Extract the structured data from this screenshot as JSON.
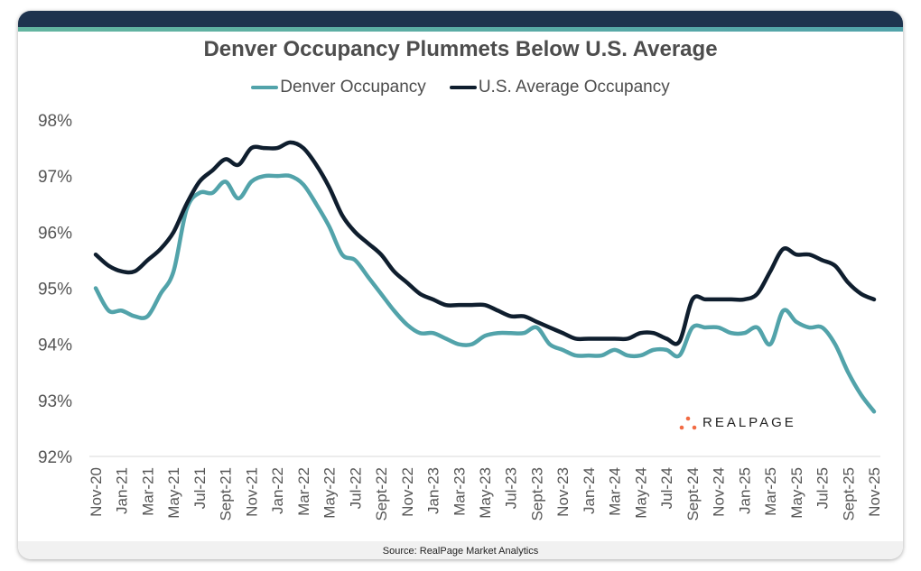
{
  "colors": {
    "denver": "#52a3aa",
    "us": "#0f1e2e",
    "header": "#1e334e",
    "accent": "#63b5a0",
    "logo_dots": "#f26b43"
  },
  "footer": {
    "source": "Source: RealPage Market Analytics"
  },
  "logo": {
    "text": "REALPAGE"
  },
  "chart_data": {
    "type": "line",
    "title": "Denver Occupancy Plummets Below U.S. Average",
    "xlabel": "",
    "ylabel": "",
    "ylim": [
      92,
      98
    ],
    "yticks": [
      "92%",
      "93%",
      "94%",
      "95%",
      "96%",
      "97%",
      "98%"
    ],
    "grid": false,
    "legend": "top",
    "xticklabels": [
      "Nov-20",
      "Jan-21",
      "Mar-21",
      "May-21",
      "Jul-21",
      "Sept-21",
      "Nov-21",
      "Jan-22",
      "Mar-22",
      "May-22",
      "Jul-22",
      "Sept-22",
      "Nov-22",
      "Jan-23",
      "Mar-23",
      "May-23",
      "Jul-23",
      "Sept-23",
      "Nov-23",
      "Jan-24",
      "Mar-24",
      "May-24",
      "Jul-24",
      "Sept-24",
      "Nov-24",
      "Jan-25",
      "Mar-25",
      "May-25",
      "Jul-25",
      "Sept-25",
      "Nov-25"
    ],
    "x_start": "Nov-20",
    "x_end": "Nov-25",
    "x_frequency": "monthly",
    "series": [
      {
        "name": "Denver Occupancy",
        "color": "#52a3aa",
        "values": [
          95.0,
          94.6,
          94.6,
          94.5,
          94.5,
          94.9,
          95.3,
          96.4,
          96.7,
          96.7,
          96.9,
          96.6,
          96.9,
          97.0,
          97.0,
          97.0,
          96.85,
          96.5,
          96.1,
          95.6,
          95.5,
          95.2,
          94.9,
          94.6,
          94.35,
          94.2,
          94.2,
          94.1,
          94.0,
          94.0,
          94.15,
          94.2,
          94.2,
          94.2,
          94.3,
          94.0,
          93.9,
          93.8,
          93.8,
          93.8,
          93.9,
          93.8,
          93.8,
          93.9,
          93.9,
          93.8,
          94.3,
          94.3,
          94.3,
          94.2,
          94.2,
          94.3,
          94.0,
          94.6,
          94.4,
          94.3,
          94.3,
          94.0,
          93.5,
          93.1,
          92.8
        ]
      },
      {
        "name": "U.S. Average Occupancy",
        "color": "#0f1e2e",
        "values": [
          95.6,
          95.4,
          95.3,
          95.3,
          95.5,
          95.7,
          96.0,
          96.5,
          96.9,
          97.1,
          97.3,
          97.2,
          97.5,
          97.5,
          97.5,
          97.6,
          97.5,
          97.2,
          96.8,
          96.3,
          96.0,
          95.8,
          95.6,
          95.3,
          95.1,
          94.9,
          94.8,
          94.7,
          94.7,
          94.7,
          94.7,
          94.6,
          94.5,
          94.5,
          94.4,
          94.3,
          94.2,
          94.1,
          94.1,
          94.1,
          94.1,
          94.1,
          94.2,
          94.2,
          94.1,
          94.05,
          94.8,
          94.8,
          94.8,
          94.8,
          94.8,
          94.9,
          95.3,
          95.7,
          95.6,
          95.6,
          95.5,
          95.4,
          95.1,
          94.9,
          94.8
        ]
      }
    ]
  }
}
